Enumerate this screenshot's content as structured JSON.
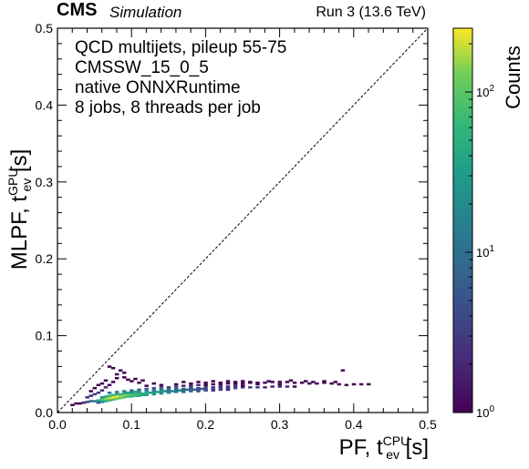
{
  "header": {
    "experiment": "CMS",
    "status": "Simulation",
    "run": "Run 3 (13.6 TeV)"
  },
  "annotations": [
    "QCD multijets, pileup 55-75",
    "CMSSW_15_0_5",
    "native ONNXRuntime",
    "8 jobs, 8 threads per job"
  ],
  "axes": {
    "xlabel_main": "PF, t",
    "xlabel_sup": "CPU",
    "xlabel_sub": "ev",
    "xlabel_unit": "[s]",
    "ylabel_main": "MLPF, t",
    "ylabel_sup": "GPU",
    "ylabel_sub": "ev",
    "ylabel_unit": "[s]",
    "colorbar_label": "Counts"
  },
  "chart_data": {
    "type": "heatmap",
    "xlim": [
      0.0,
      0.5
    ],
    "ylim": [
      0.0,
      0.5
    ],
    "x_ticks": [
      "0.0",
      "0.1",
      "0.2",
      "0.3",
      "0.4",
      "0.5"
    ],
    "y_ticks": [
      "0.0",
      "0.1",
      "0.2",
      "0.3",
      "0.4",
      "0.5"
    ],
    "colorbar": {
      "scale": "log",
      "range": [
        1,
        250
      ],
      "tick_labels": [
        "10^0",
        "10^1",
        "10^2"
      ],
      "colormap": "viridis"
    },
    "reference_line": {
      "style": "dashed",
      "from": [
        0,
        0
      ],
      "to": [
        0.5,
        0.5
      ]
    },
    "grid": false,
    "cells": [
      [
        0.02,
        0.01,
        1
      ],
      [
        0.025,
        0.012,
        1
      ],
      [
        0.03,
        0.012,
        1
      ],
      [
        0.035,
        0.013,
        2
      ],
      [
        0.04,
        0.014,
        3
      ],
      [
        0.045,
        0.015,
        6
      ],
      [
        0.05,
        0.015,
        14
      ],
      [
        0.055,
        0.016,
        35
      ],
      [
        0.06,
        0.017,
        80
      ],
      [
        0.065,
        0.018,
        140
      ],
      [
        0.07,
        0.019,
        200
      ],
      [
        0.075,
        0.02,
        230
      ],
      [
        0.08,
        0.021,
        210
      ],
      [
        0.085,
        0.021,
        180
      ],
      [
        0.09,
        0.022,
        150
      ],
      [
        0.095,
        0.023,
        120
      ],
      [
        0.1,
        0.023,
        95
      ],
      [
        0.105,
        0.024,
        80
      ],
      [
        0.11,
        0.024,
        65
      ],
      [
        0.115,
        0.025,
        55
      ],
      [
        0.12,
        0.025,
        45
      ],
      [
        0.125,
        0.026,
        40
      ],
      [
        0.13,
        0.026,
        35
      ],
      [
        0.135,
        0.027,
        30
      ],
      [
        0.14,
        0.027,
        26
      ],
      [
        0.145,
        0.028,
        22
      ],
      [
        0.15,
        0.028,
        19
      ],
      [
        0.155,
        0.028,
        17
      ],
      [
        0.16,
        0.029,
        15
      ],
      [
        0.165,
        0.029,
        13
      ],
      [
        0.17,
        0.029,
        12
      ],
      [
        0.175,
        0.03,
        10
      ],
      [
        0.18,
        0.03,
        9
      ],
      [
        0.185,
        0.03,
        8
      ],
      [
        0.19,
        0.03,
        7
      ],
      [
        0.195,
        0.031,
        7
      ],
      [
        0.2,
        0.031,
        6
      ],
      [
        0.21,
        0.031,
        5
      ],
      [
        0.22,
        0.032,
        5
      ],
      [
        0.23,
        0.032,
        4
      ],
      [
        0.24,
        0.032,
        4
      ],
      [
        0.25,
        0.033,
        3
      ],
      [
        0.26,
        0.033,
        3
      ],
      [
        0.27,
        0.033,
        3
      ],
      [
        0.28,
        0.033,
        2
      ],
      [
        0.29,
        0.034,
        2
      ],
      [
        0.3,
        0.034,
        2
      ],
      [
        0.31,
        0.034,
        2
      ],
      [
        0.32,
        0.034,
        1
      ],
      [
        0.055,
        0.013,
        6
      ],
      [
        0.06,
        0.014,
        20
      ],
      [
        0.065,
        0.015,
        45
      ],
      [
        0.07,
        0.016,
        70
      ],
      [
        0.075,
        0.017,
        90
      ],
      [
        0.08,
        0.018,
        110
      ],
      [
        0.085,
        0.019,
        100
      ],
      [
        0.09,
        0.02,
        90
      ],
      [
        0.095,
        0.021,
        75
      ],
      [
        0.1,
        0.021,
        65
      ],
      [
        0.105,
        0.022,
        55
      ],
      [
        0.11,
        0.022,
        45
      ],
      [
        0.115,
        0.023,
        38
      ],
      [
        0.12,
        0.023,
        32
      ],
      [
        0.13,
        0.024,
        25
      ],
      [
        0.14,
        0.025,
        20
      ],
      [
        0.15,
        0.026,
        15
      ],
      [
        0.16,
        0.027,
        12
      ],
      [
        0.17,
        0.027,
        9
      ],
      [
        0.18,
        0.028,
        7
      ],
      [
        0.19,
        0.028,
        5
      ],
      [
        0.2,
        0.029,
        4
      ],
      [
        0.21,
        0.029,
        3
      ],
      [
        0.22,
        0.03,
        3
      ],
      [
        0.23,
        0.03,
        2
      ],
      [
        0.06,
        0.02,
        25
      ],
      [
        0.065,
        0.021,
        40
      ],
      [
        0.07,
        0.022,
        55
      ],
      [
        0.075,
        0.023,
        60
      ],
      [
        0.08,
        0.024,
        55
      ],
      [
        0.085,
        0.024,
        50
      ],
      [
        0.09,
        0.025,
        42
      ],
      [
        0.095,
        0.026,
        36
      ],
      [
        0.1,
        0.026,
        30
      ],
      [
        0.105,
        0.027,
        26
      ],
      [
        0.11,
        0.027,
        22
      ],
      [
        0.12,
        0.028,
        18
      ],
      [
        0.13,
        0.029,
        14
      ],
      [
        0.14,
        0.03,
        11
      ],
      [
        0.15,
        0.03,
        9
      ],
      [
        0.16,
        0.031,
        7
      ],
      [
        0.17,
        0.031,
        6
      ],
      [
        0.18,
        0.032,
        5
      ],
      [
        0.19,
        0.032,
        4
      ],
      [
        0.2,
        0.033,
        3
      ],
      [
        0.21,
        0.033,
        3
      ],
      [
        0.22,
        0.034,
        2
      ],
      [
        0.23,
        0.034,
        2
      ],
      [
        0.24,
        0.035,
        2
      ],
      [
        0.25,
        0.035,
        1
      ],
      [
        0.07,
        0.026,
        12
      ],
      [
        0.08,
        0.027,
        14
      ],
      [
        0.09,
        0.028,
        12
      ],
      [
        0.1,
        0.029,
        10
      ],
      [
        0.11,
        0.03,
        8
      ],
      [
        0.12,
        0.031,
        6
      ],
      [
        0.13,
        0.032,
        5
      ],
      [
        0.14,
        0.033,
        4
      ],
      [
        0.15,
        0.033,
        3
      ],
      [
        0.16,
        0.034,
        3
      ],
      [
        0.17,
        0.035,
        2
      ],
      [
        0.18,
        0.035,
        2
      ],
      [
        0.19,
        0.036,
        2
      ],
      [
        0.2,
        0.036,
        1
      ],
      [
        0.21,
        0.037,
        1
      ],
      [
        0.22,
        0.037,
        1
      ],
      [
        0.23,
        0.038,
        1
      ],
      [
        0.24,
        0.038,
        1
      ],
      [
        0.25,
        0.038,
        1
      ],
      [
        0.26,
        0.039,
        1
      ],
      [
        0.27,
        0.039,
        1
      ],
      [
        0.28,
        0.039,
        1
      ],
      [
        0.29,
        0.04,
        1
      ],
      [
        0.3,
        0.04,
        1
      ],
      [
        0.31,
        0.04,
        1
      ],
      [
        0.32,
        0.039,
        1
      ],
      [
        0.33,
        0.039,
        1
      ],
      [
        0.34,
        0.038,
        1
      ],
      [
        0.35,
        0.038,
        1
      ],
      [
        0.36,
        0.039,
        1
      ],
      [
        0.37,
        0.038,
        1
      ],
      [
        0.38,
        0.037,
        1
      ],
      [
        0.39,
        0.036,
        1
      ],
      [
        0.4,
        0.037,
        1
      ],
      [
        0.04,
        0.02,
        2
      ],
      [
        0.045,
        0.022,
        2
      ],
      [
        0.05,
        0.024,
        3
      ],
      [
        0.055,
        0.026,
        3
      ],
      [
        0.06,
        0.029,
        2
      ],
      [
        0.065,
        0.033,
        2
      ],
      [
        0.07,
        0.036,
        1
      ],
      [
        0.075,
        0.04,
        1
      ],
      [
        0.08,
        0.045,
        1
      ],
      [
        0.07,
        0.06,
        1
      ],
      [
        0.075,
        0.058,
        1
      ],
      [
        0.08,
        0.05,
        1
      ],
      [
        0.09,
        0.046,
        1
      ],
      [
        0.085,
        0.055,
        1
      ],
      [
        0.095,
        0.043,
        1
      ],
      [
        0.1,
        0.041,
        1
      ],
      [
        0.11,
        0.039,
        1
      ],
      [
        0.09,
        0.052,
        1
      ],
      [
        0.105,
        0.044,
        1
      ],
      [
        0.115,
        0.042,
        1
      ],
      [
        0.045,
        0.028,
        1
      ],
      [
        0.05,
        0.032,
        1
      ],
      [
        0.06,
        0.038,
        1
      ],
      [
        0.065,
        0.042,
        1
      ],
      [
        0.055,
        0.036,
        1
      ],
      [
        0.16,
        0.037,
        1
      ],
      [
        0.17,
        0.04,
        1
      ],
      [
        0.18,
        0.038,
        1
      ],
      [
        0.19,
        0.04,
        1
      ],
      [
        0.2,
        0.039,
        1
      ],
      [
        0.21,
        0.041,
        1
      ],
      [
        0.22,
        0.039,
        1
      ],
      [
        0.23,
        0.041,
        1
      ],
      [
        0.24,
        0.04,
        1
      ],
      [
        0.25,
        0.041,
        1
      ],
      [
        0.26,
        0.04,
        1
      ],
      [
        0.27,
        0.037,
        1
      ],
      [
        0.285,
        0.041,
        1
      ],
      [
        0.3,
        0.037,
        1
      ],
      [
        0.315,
        0.042,
        1
      ],
      [
        0.335,
        0.041,
        1
      ],
      [
        0.345,
        0.04,
        1
      ],
      [
        0.36,
        0.041,
        1
      ],
      [
        0.375,
        0.04,
        1
      ],
      [
        0.385,
        0.055,
        1
      ],
      [
        0.41,
        0.037,
        1
      ],
      [
        0.42,
        0.037,
        1
      ],
      [
        0.12,
        0.035,
        1
      ],
      [
        0.13,
        0.038,
        1
      ],
      [
        0.14,
        0.036,
        1
      ]
    ]
  }
}
